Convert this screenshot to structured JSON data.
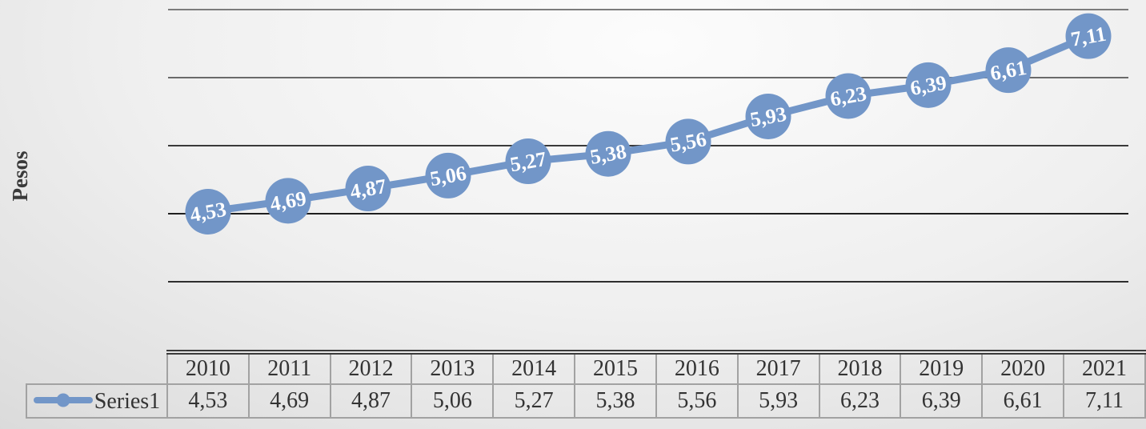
{
  "chart_data": {
    "type": "line",
    "title": "",
    "ylabel": "Pesos",
    "xlabel": "",
    "categories": [
      "2010",
      "2011",
      "2012",
      "2013",
      "2014",
      "2015",
      "2016",
      "2017",
      "2018",
      "2019",
      "2020",
      "2021"
    ],
    "series": [
      {
        "name": "Series1",
        "values": [
          4.53,
          4.69,
          4.87,
          5.06,
          5.27,
          5.38,
          5.56,
          5.93,
          6.23,
          6.39,
          6.61,
          7.11
        ],
        "labels": [
          "4,53",
          "4,69",
          "4,87",
          "5,06",
          "5,27",
          "5,38",
          "5,56",
          "5,93",
          "6,23",
          "6,39",
          "6,61",
          "7,11"
        ]
      }
    ],
    "axis_range": {
      "min": 3.5,
      "max": 7.5,
      "gridline_step": 1.0
    },
    "grid": true,
    "value_axis_tick_labels_visible": false,
    "legend_position": "data-table-left",
    "data_table_visible": true,
    "marker_style": "large-circle-with-label"
  },
  "colors": {
    "accent_blue": "#7296C8",
    "marker_label_text": "#FFFFFF",
    "gridline_dark": "#2e2e2e",
    "gridline_light": "#7c7c7c",
    "axis_title_text": "#3a3a3a",
    "table_text": "#333333",
    "table_border": "#a2a2a2",
    "table_top_border": "#3a3a3a"
  }
}
